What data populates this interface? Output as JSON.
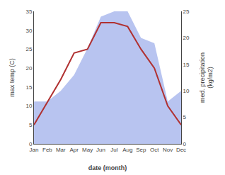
{
  "chart_data": {
    "type": "line",
    "categories": [
      "Jan",
      "Feb",
      "Mar",
      "Apr",
      "May",
      "Jun",
      "Jul",
      "Aug",
      "Sep",
      "Oct",
      "Nov",
      "Dec"
    ],
    "series": [
      {
        "type": "area",
        "axis": "y2",
        "color": "#b8c4f0",
        "values": [
          8,
          8,
          10,
          13,
          18,
          24,
          25,
          25,
          20,
          19,
          8,
          10
        ]
      },
      {
        "type": "line",
        "color": "#b03030",
        "values": [
          5,
          11,
          17,
          24,
          25,
          32,
          32,
          31,
          25,
          20,
          10,
          5
        ]
      }
    ],
    "xlabel": "date (month)",
    "ylabel": "max temp (C)",
    "y2label": "med. precipitation\n(kg/m2)",
    "ylim": [
      0,
      35
    ],
    "yticks": [
      0,
      5,
      10,
      15,
      20,
      25,
      30,
      35
    ],
    "y2lim": [
      0,
      25
    ],
    "y2ticks": [
      0,
      5,
      10,
      15,
      20,
      25
    ],
    "grid": false
  }
}
